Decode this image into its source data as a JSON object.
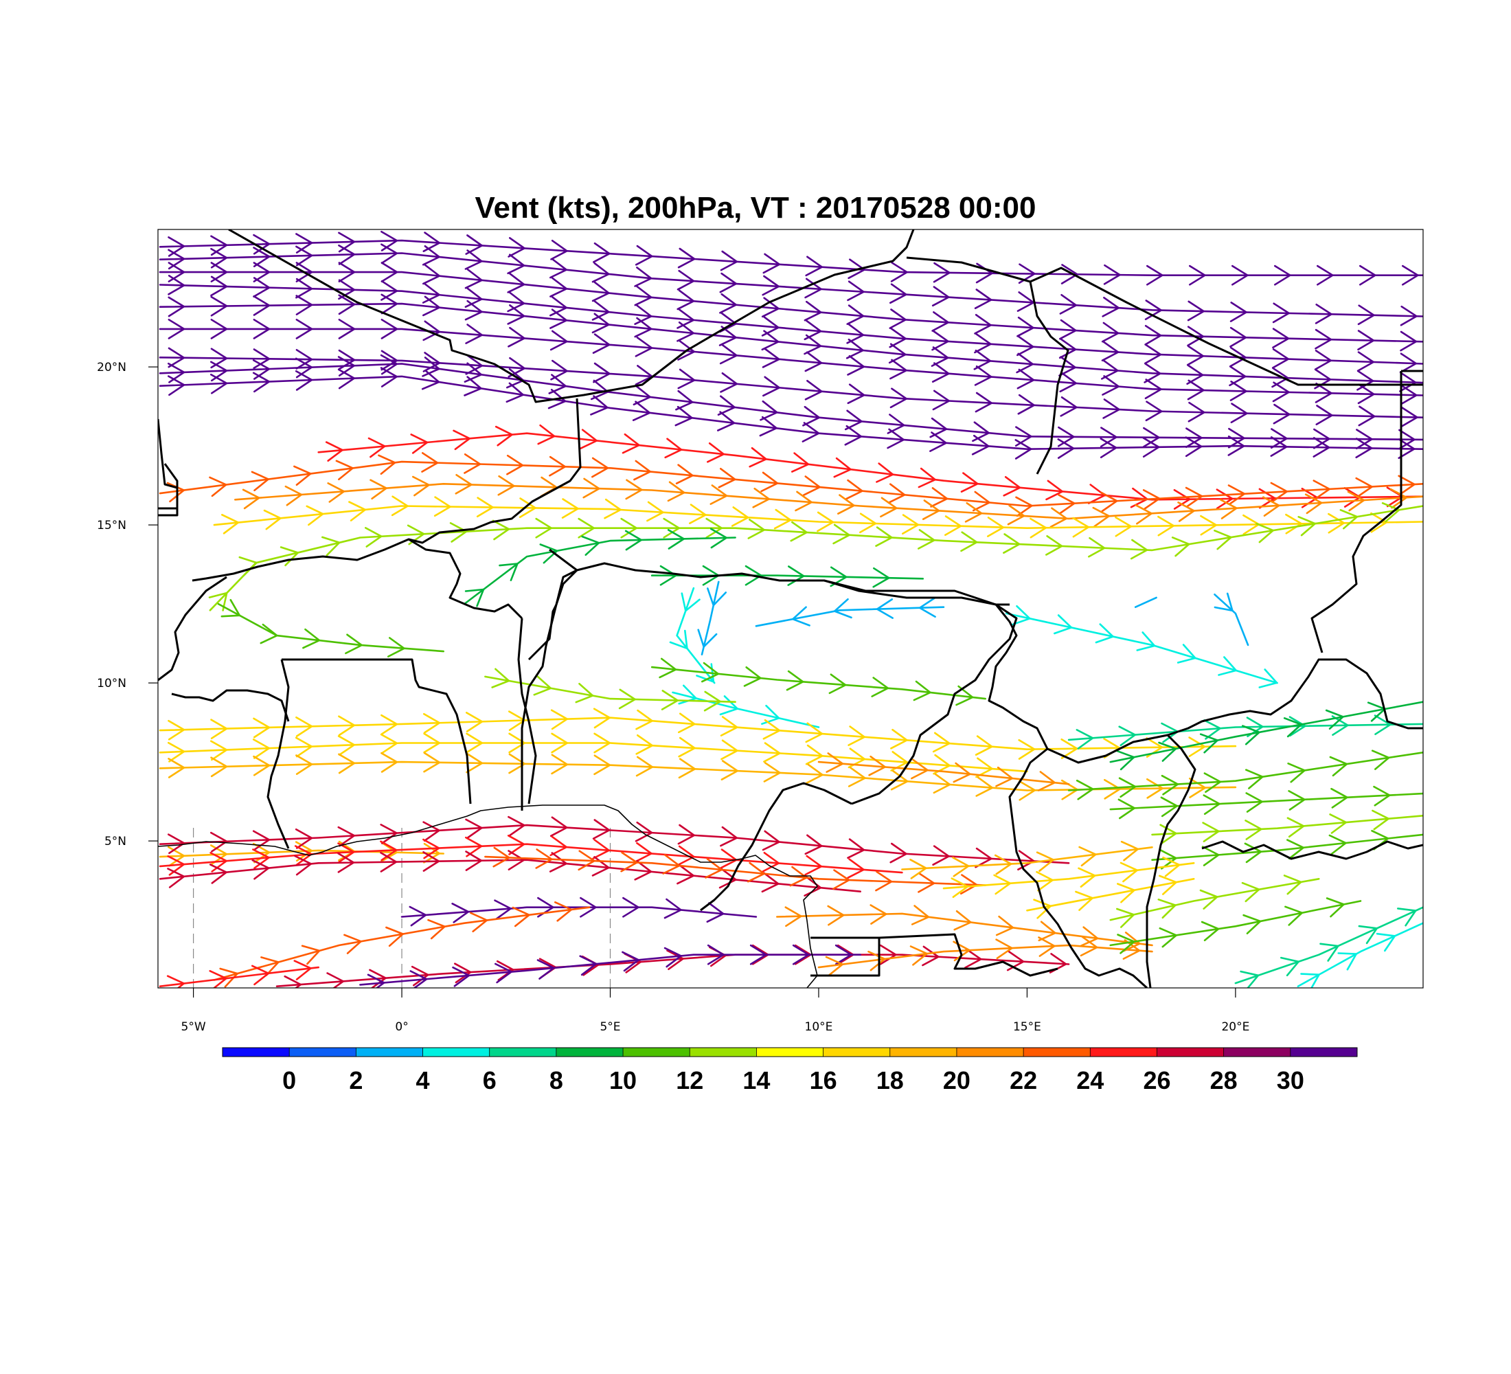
{
  "title": "Vent (kts), 200hPa, VT : 20170528  00:00",
  "map": {
    "lon_range": [
      -5.85,
      24.5
    ],
    "lat_range": [
      0.35,
      24.35
    ],
    "lon_ticks": [
      {
        "value": -5,
        "label": "5°W"
      },
      {
        "value": 0,
        "label": "0°"
      },
      {
        "value": 5,
        "label": "5°E"
      },
      {
        "value": 10,
        "label": "10°E"
      },
      {
        "value": 15,
        "label": "15°E"
      },
      {
        "value": 20,
        "label": "20°E"
      }
    ],
    "lat_ticks": [
      {
        "value": 20,
        "label": "20°N"
      },
      {
        "value": 15,
        "label": "15°N"
      },
      {
        "value": 10,
        "label": "10°N"
      },
      {
        "value": 5,
        "label": "5°N"
      }
    ]
  },
  "colorbar": {
    "colors": [
      "#0a0aff",
      "#0b5ef5",
      "#00b0f5",
      "#00f0e0",
      "#00d58a",
      "#00b33c",
      "#4cc000",
      "#9ae000",
      "#ffff00",
      "#ffd700",
      "#ffb400",
      "#ff8c00",
      "#ff5a00",
      "#ff1a1a",
      "#cc0033",
      "#8c0060",
      "#550090"
    ],
    "labels": [
      "0",
      "2",
      "4",
      "6",
      "8",
      "10",
      "12",
      "14",
      "16",
      "18",
      "20",
      "22",
      "24",
      "26",
      "28",
      "30"
    ]
  },
  "streamlines": [
    {
      "speed": 31,
      "points": [
        [
          -5.8,
          23.8
        ],
        [
          0,
          24
        ],
        [
          6,
          23.5
        ],
        [
          12,
          23
        ],
        [
          18,
          22.9
        ],
        [
          24.5,
          22.9
        ]
      ]
    },
    {
      "speed": 31,
      "points": [
        [
          -5.8,
          23.4
        ],
        [
          0,
          23.6
        ],
        [
          6,
          22.8
        ],
        [
          12,
          22.3
        ],
        [
          18,
          21.8
        ],
        [
          24.5,
          21.6
        ]
      ]
    },
    {
      "speed": 31,
      "points": [
        [
          -5.8,
          23
        ],
        [
          0,
          23
        ],
        [
          6,
          22.2
        ],
        [
          12,
          21.5
        ],
        [
          18,
          21
        ],
        [
          24.5,
          20.8
        ]
      ]
    },
    {
      "speed": 31,
      "points": [
        [
          -5.8,
          22.6
        ],
        [
          0,
          22.4
        ],
        [
          6,
          21.6
        ],
        [
          12,
          20.9
        ],
        [
          18,
          20.4
        ],
        [
          24.5,
          20.1
        ]
      ]
    },
    {
      "speed": 31,
      "points": [
        [
          -5.8,
          21.9
        ],
        [
          0,
          22
        ],
        [
          6,
          21.2
        ],
        [
          12,
          20.4
        ],
        [
          18,
          19.8
        ],
        [
          24.5,
          19.5
        ]
      ]
    },
    {
      "speed": 31,
      "points": [
        [
          -5.8,
          21.2
        ],
        [
          0,
          21.2
        ],
        [
          6,
          20.6
        ],
        [
          12,
          19.9
        ],
        [
          18,
          19.3
        ],
        [
          24.5,
          19.1
        ]
      ]
    },
    {
      "speed": 31,
      "points": [
        [
          -5.8,
          20.3
        ],
        [
          0,
          20.2
        ],
        [
          6,
          19.7
        ],
        [
          12,
          19
        ],
        [
          18,
          18.6
        ],
        [
          24.5,
          18.4
        ]
      ]
    },
    {
      "speed": 31,
      "points": [
        [
          -5.8,
          19.8
        ],
        [
          0,
          20.1
        ],
        [
          5,
          19.2
        ],
        [
          10,
          18.4
        ],
        [
          15,
          17.8
        ],
        [
          24.5,
          17.7
        ]
      ]
    },
    {
      "speed": 30,
      "points": [
        [
          -5.8,
          19.4
        ],
        [
          0,
          19.7
        ],
        [
          5,
          18.7
        ],
        [
          10,
          17.9
        ],
        [
          15,
          17.4
        ],
        [
          20,
          17.5
        ],
        [
          24.5,
          17.4
        ]
      ]
    },
    {
      "speed": 25,
      "points": [
        [
          -2,
          17.3
        ],
        [
          3,
          17.9
        ],
        [
          8,
          17.2
        ],
        [
          13,
          16.4
        ],
        [
          18,
          15.8
        ],
        [
          24.5,
          15.9
        ]
      ]
    },
    {
      "speed": 23,
      "points": [
        [
          -5.8,
          16
        ],
        [
          0,
          17
        ],
        [
          5,
          16.8
        ],
        [
          10,
          16.2
        ],
        [
          15,
          15.6
        ],
        [
          24.5,
          16.3
        ]
      ]
    },
    {
      "speed": 20,
      "points": [
        [
          -4,
          15.8
        ],
        [
          1,
          16.3
        ],
        [
          6,
          16.1
        ],
        [
          11,
          15.6
        ],
        [
          16,
          15.2
        ],
        [
          24.5,
          15.9
        ]
      ]
    },
    {
      "speed": 17,
      "points": [
        [
          -4.5,
          15
        ],
        [
          0,
          15.6
        ],
        [
          5,
          15.5
        ],
        [
          10,
          15.1
        ],
        [
          15,
          14.9
        ],
        [
          24.5,
          15.1
        ]
      ]
    },
    {
      "speed": 13,
      "points": [
        [
          -4.6,
          12.3
        ],
        [
          -3.5,
          13.8
        ],
        [
          -1,
          14.6
        ],
        [
          3,
          14.9
        ],
        [
          8,
          14.9
        ],
        [
          13,
          14.5
        ],
        [
          18,
          14.2
        ],
        [
          24.5,
          15.6
        ]
      ]
    },
    {
      "speed": 11,
      "points": [
        [
          -4.4,
          12.5
        ],
        [
          -3,
          11.5
        ],
        [
          -1,
          11.2
        ],
        [
          1,
          11
        ]
      ]
    },
    {
      "speed": 9,
      "points": [
        [
          1.5,
          12.5
        ],
        [
          3,
          14
        ],
        [
          5,
          14.5
        ],
        [
          8,
          14.6
        ]
      ]
    },
    {
      "speed": 9,
      "points": [
        [
          6,
          13.4
        ],
        [
          9,
          13.4
        ],
        [
          12.5,
          13.3
        ]
      ]
    },
    {
      "speed": 4,
      "points": [
        [
          7,
          13
        ],
        [
          6.6,
          11.5
        ],
        [
          7.5,
          10
        ]
      ]
    },
    {
      "speed": 3,
      "points": [
        [
          7.6,
          13.2
        ],
        [
          7.4,
          12
        ],
        [
          7.2,
          10.9
        ]
      ]
    },
    {
      "speed": 2,
      "points": [
        [
          13,
          12.4
        ],
        [
          10.5,
          12.3
        ],
        [
          8.5,
          11.8
        ]
      ]
    },
    {
      "speed": 2,
      "points": [
        [
          17.6,
          12.4
        ],
        [
          18.1,
          12.7
        ]
      ]
    },
    {
      "speed": 3,
      "points": [
        [
          19.5,
          12.8
        ],
        [
          20,
          12.2
        ],
        [
          20.3,
          11.2
        ]
      ]
    },
    {
      "speed": 5,
      "points": [
        [
          14.5,
          12.2
        ],
        [
          18,
          11.2
        ],
        [
          21,
          10
        ]
      ]
    },
    {
      "speed": 10,
      "points": [
        [
          6,
          10.5
        ],
        [
          9,
          10.1
        ],
        [
          12,
          9.8
        ],
        [
          14,
          9.5
        ]
      ]
    },
    {
      "speed": 5,
      "points": [
        [
          6.5,
          9.7
        ],
        [
          8,
          9.2
        ],
        [
          10,
          8.6
        ]
      ]
    },
    {
      "speed": 12,
      "points": [
        [
          2,
          10.2
        ],
        [
          5,
          9.5
        ],
        [
          8,
          9.4
        ]
      ]
    },
    {
      "speed": 16,
      "points": [
        [
          -5.8,
          8.5
        ],
        [
          0,
          8.7
        ],
        [
          5,
          8.9
        ],
        [
          10,
          8.4
        ],
        [
          15,
          7.9
        ],
        [
          20,
          8
        ]
      ]
    },
    {
      "speed": 17,
      "points": [
        [
          -5.8,
          7.8
        ],
        [
          0,
          8.1
        ],
        [
          5,
          8.1
        ],
        [
          10,
          7.7
        ],
        [
          15,
          7.2
        ]
      ]
    },
    {
      "speed": 18,
      "points": [
        [
          -5.8,
          7.3
        ],
        [
          0,
          7.5
        ],
        [
          5,
          7.4
        ],
        [
          10,
          7.1
        ],
        [
          15,
          6.6
        ],
        [
          20,
          6.7
        ]
      ]
    },
    {
      "speed": 20,
      "points": [
        [
          10,
          7.5
        ],
        [
          13,
          7.2
        ],
        [
          16,
          6.8
        ]
      ]
    },
    {
      "speed": 7,
      "points": [
        [
          16,
          8.2
        ],
        [
          20,
          8.6
        ],
        [
          24.5,
          8.7
        ]
      ]
    },
    {
      "speed": 9,
      "points": [
        [
          17,
          7.5
        ],
        [
          20,
          8.3
        ],
        [
          24.5,
          9.4
        ]
      ]
    },
    {
      "speed": 11,
      "points": [
        [
          16,
          6.6
        ],
        [
          20,
          6.9
        ],
        [
          24.5,
          7.8
        ]
      ]
    },
    {
      "speed": 10,
      "points": [
        [
          17,
          6
        ],
        [
          20,
          6.2
        ],
        [
          24.5,
          6.5
        ]
      ]
    },
    {
      "speed": 12,
      "points": [
        [
          18,
          5.2
        ],
        [
          21,
          5.4
        ],
        [
          24.5,
          5.8
        ]
      ]
    },
    {
      "speed": 10,
      "points": [
        [
          18,
          4.4
        ],
        [
          21,
          4.7
        ],
        [
          24.5,
          5.2
        ]
      ]
    },
    {
      "speed": 19,
      "points": [
        [
          -5.8,
          4.5
        ],
        [
          -2,
          4.7
        ],
        [
          1,
          4.6
        ]
      ]
    },
    {
      "speed": 26,
      "points": [
        [
          -5.8,
          4.9
        ],
        [
          -2,
          5.1
        ],
        [
          3,
          5.5
        ],
        [
          8,
          5.1
        ],
        [
          12,
          4.6
        ],
        [
          16,
          4.3
        ]
      ]
    },
    {
      "speed": 25,
      "points": [
        [
          -5.8,
          4.2
        ],
        [
          -2,
          4.6
        ],
        [
          3,
          4.9
        ],
        [
          8,
          4.4
        ],
        [
          12,
          4
        ]
      ]
    },
    {
      "speed": 27,
      "points": [
        [
          -5.8,
          3.8
        ],
        [
          -2,
          4.3
        ],
        [
          3,
          4.4
        ],
        [
          7,
          3.9
        ],
        [
          11,
          3.4
        ]
      ]
    },
    {
      "speed": 22,
      "points": [
        [
          2,
          4.5
        ],
        [
          6,
          4.3
        ],
        [
          10,
          3.8
        ],
        [
          14,
          3.6
        ]
      ]
    },
    {
      "speed": 18,
      "points": [
        [
          12,
          4.1
        ],
        [
          15,
          4.3
        ],
        [
          18,
          4.8
        ]
      ]
    },
    {
      "speed": 16,
      "points": [
        [
          13,
          3.5
        ],
        [
          16,
          3.8
        ],
        [
          19,
          4.3
        ]
      ]
    },
    {
      "speed": 31,
      "points": [
        [
          0,
          2.6
        ],
        [
          3,
          2.9
        ],
        [
          6,
          2.9
        ],
        [
          8.5,
          2.6
        ]
      ]
    },
    {
      "speed": 22,
      "points": [
        [
          -4.5,
          0.6
        ],
        [
          -1.5,
          1.7
        ],
        [
          1.5,
          2.4
        ],
        [
          4.5,
          2.9
        ]
      ]
    },
    {
      "speed": 25,
      "points": [
        [
          -5.8,
          0.4
        ],
        [
          -2,
          1
        ]
      ]
    },
    {
      "speed": 26,
      "points": [
        [
          -3,
          0.4
        ],
        [
          1,
          0.8
        ],
        [
          5,
          1.1
        ],
        [
          8,
          1.4
        ],
        [
          12,
          1.4
        ],
        [
          16,
          1.1
        ]
      ]
    },
    {
      "speed": 30,
      "points": [
        [
          -1,
          0.45
        ],
        [
          3,
          0.9
        ],
        [
          7,
          1.4
        ],
        [
          11,
          1.4
        ]
      ]
    },
    {
      "speed": 20,
      "points": [
        [
          9,
          2.6
        ],
        [
          12,
          2.7
        ],
        [
          15,
          2.2
        ],
        [
          18,
          1.7
        ]
      ]
    },
    {
      "speed": 21,
      "points": [
        [
          10,
          1
        ],
        [
          13,
          1.5
        ],
        [
          16,
          1.7
        ],
        [
          18,
          1.5
        ]
      ]
    },
    {
      "speed": 16,
      "points": [
        [
          15,
          2.8
        ],
        [
          17,
          3.3
        ],
        [
          19,
          3.8
        ]
      ]
    },
    {
      "speed": 13,
      "points": [
        [
          17,
          2.5
        ],
        [
          19,
          3.1
        ],
        [
          22,
          3.8
        ]
      ]
    },
    {
      "speed": 11,
      "points": [
        [
          17,
          1.7
        ],
        [
          20,
          2.3
        ],
        [
          23,
          3.1
        ]
      ]
    },
    {
      "speed": 5,
      "points": [
        [
          21.5,
          0.4
        ],
        [
          23,
          1.5
        ],
        [
          24.5,
          2.4
        ]
      ]
    },
    {
      "speed": 7,
      "points": [
        [
          20,
          0.5
        ],
        [
          22,
          1.4
        ],
        [
          24.5,
          2.9
        ]
      ]
    }
  ]
}
